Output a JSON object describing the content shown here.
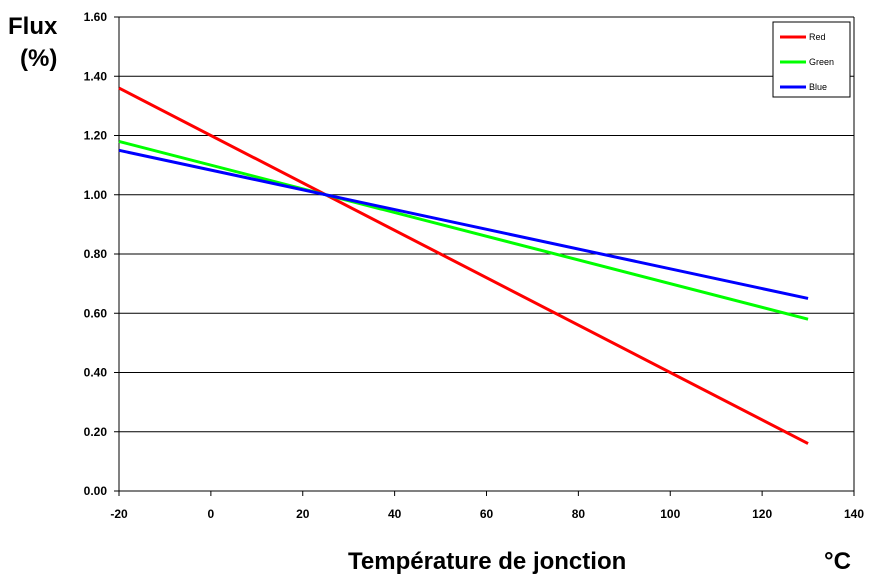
{
  "chart_data": {
    "type": "line",
    "ylabel_line1": "Flux",
    "ylabel_line2": "(%)",
    "xlabel": "Température de jonction",
    "xunit": "°C",
    "xlim": [
      -20,
      140
    ],
    "ylim": [
      0,
      1.6
    ],
    "x_ticks": [
      "-20",
      "0",
      "20",
      "40",
      "60",
      "80",
      "100",
      "120",
      "140"
    ],
    "y_ticks": [
      "0.00",
      "0.20",
      "0.40",
      "0.60",
      "0.80",
      "1.00",
      "1.20",
      "1.40",
      "1.60"
    ],
    "grid": "horizontal",
    "legend_position": "top-right",
    "series": [
      {
        "name": "Red",
        "color": "#ff0000",
        "x": [
          -20,
          130
        ],
        "y": [
          1.36,
          0.16
        ]
      },
      {
        "name": "Green",
        "color": "#00ff00",
        "x": [
          -20,
          130
        ],
        "y": [
          1.18,
          0.58
        ]
      },
      {
        "name": "Blue",
        "color": "#0000ff",
        "x": [
          -20,
          130
        ],
        "y": [
          1.15,
          0.65
        ]
      }
    ]
  }
}
